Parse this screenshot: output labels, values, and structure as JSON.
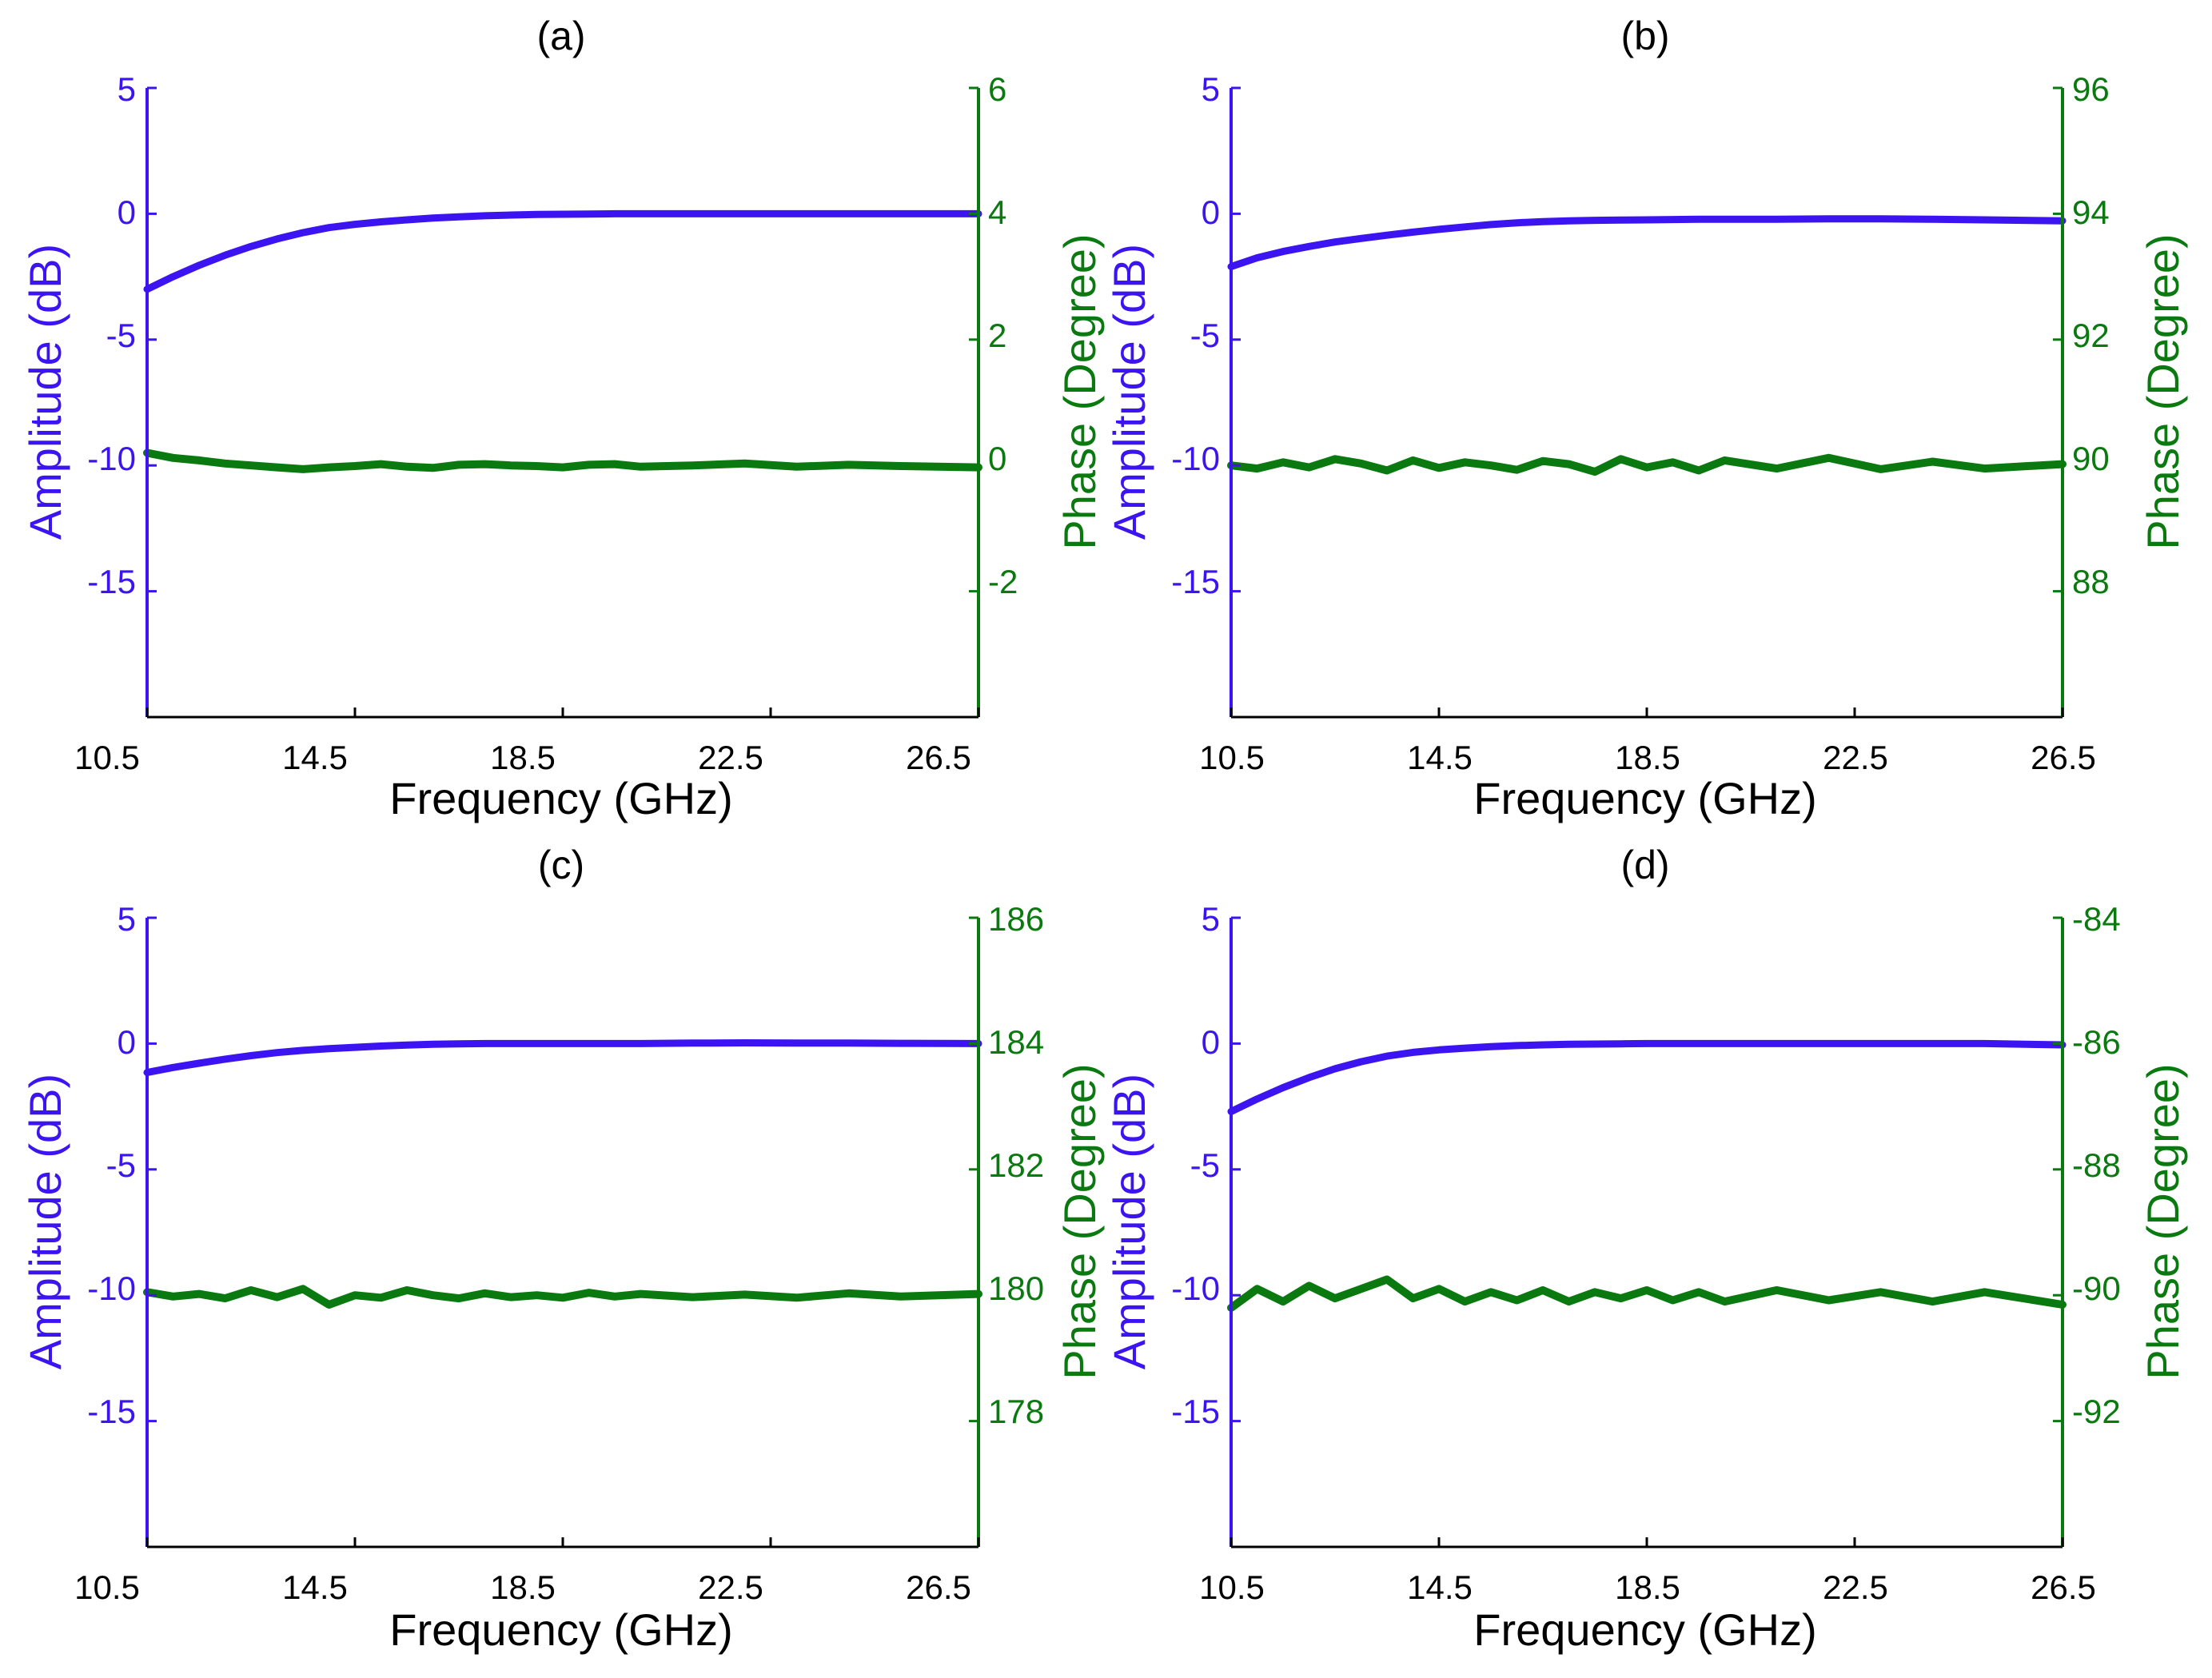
{
  "colors": {
    "amplitude": "#3c14f2",
    "phase": "#0a7a10",
    "axis": "#000000",
    "background": "#ffffff"
  },
  "chart_data": [
    {
      "type": "line",
      "title": "(a)",
      "xlabel": "Frequency (GHz)",
      "ylabel": "Amplitude (dB)",
      "y2label": "Phase (Degree)",
      "xlim": [
        10.5,
        26.5
      ],
      "ylim": [
        -20,
        5
      ],
      "y2lim": [
        -4,
        6
      ],
      "xticks": [
        "10.5",
        "14.5",
        "18.5",
        "22.5",
        "26.5"
      ],
      "yticks": [
        "5",
        "0",
        "-5",
        "-10",
        "-15"
      ],
      "y2ticks": [
        "6",
        "4",
        "2",
        "0",
        "-2"
      ],
      "x": [
        10.5,
        11.0,
        11.5,
        12.0,
        12.5,
        13.0,
        13.5,
        14.0,
        14.5,
        15.0,
        15.5,
        16.0,
        16.5,
        17.0,
        17.5,
        18.0,
        18.5,
        19.0,
        19.5,
        20.0,
        21.0,
        22.0,
        23.0,
        24.0,
        25.0,
        26.5
      ],
      "series": [
        {
          "name": "Amplitude",
          "axis": "left",
          "values": [
            -3.0,
            -2.5,
            -2.05,
            -1.65,
            -1.3,
            -1.0,
            -0.75,
            -0.55,
            -0.42,
            -0.32,
            -0.24,
            -0.17,
            -0.12,
            -0.08,
            -0.05,
            -0.03,
            -0.02,
            -0.01,
            0.0,
            0.0,
            0.0,
            0.0,
            0.0,
            0.0,
            0.0,
            0.0
          ]
        },
        {
          "name": "Phase",
          "axis": "right",
          "values": [
            0.2,
            0.12,
            0.08,
            0.03,
            0.0,
            -0.03,
            -0.06,
            -0.03,
            -0.01,
            0.02,
            -0.02,
            -0.04,
            0.01,
            0.02,
            0.0,
            -0.01,
            -0.03,
            0.01,
            0.02,
            -0.02,
            0.0,
            0.03,
            -0.02,
            0.01,
            -0.01,
            -0.03
          ]
        }
      ]
    },
    {
      "type": "line",
      "title": "(b)",
      "xlabel": "Frequency (GHz)",
      "ylabel": "Amplitude (dB)",
      "y2label": "Phase (Degree)",
      "xlim": [
        10.5,
        26.5
      ],
      "ylim": [
        -20,
        5
      ],
      "y2lim": [
        86,
        96
      ],
      "xticks": [
        "10.5",
        "14.5",
        "18.5",
        "22.5",
        "26.5"
      ],
      "yticks": [
        "5",
        "0",
        "-5",
        "-10",
        "-15"
      ],
      "y2ticks": [
        "96",
        "94",
        "92",
        "90",
        "88"
      ],
      "x": [
        10.5,
        11.0,
        11.5,
        12.0,
        12.5,
        13.0,
        13.5,
        14.0,
        14.5,
        15.0,
        15.5,
        16.0,
        16.5,
        17.0,
        17.5,
        18.0,
        18.5,
        19.0,
        19.5,
        20.0,
        21.0,
        22.0,
        23.0,
        24.0,
        25.0,
        26.5
      ],
      "series": [
        {
          "name": "Amplitude",
          "axis": "left",
          "values": [
            -2.1,
            -1.75,
            -1.5,
            -1.3,
            -1.12,
            -0.98,
            -0.85,
            -0.73,
            -0.62,
            -0.52,
            -0.43,
            -0.36,
            -0.31,
            -0.28,
            -0.26,
            -0.25,
            -0.24,
            -0.23,
            -0.22,
            -0.22,
            -0.22,
            -0.2,
            -0.2,
            -0.22,
            -0.24,
            -0.28
          ]
        },
        {
          "name": "Phase",
          "axis": "right",
          "values": [
            90.0,
            89.95,
            90.05,
            89.97,
            90.1,
            90.03,
            89.92,
            90.08,
            89.96,
            90.05,
            90.0,
            89.93,
            90.07,
            90.02,
            89.9,
            90.1,
            89.97,
            90.05,
            89.92,
            90.08,
            89.95,
            90.12,
            89.94,
            90.06,
            89.95,
            90.02
          ]
        }
      ]
    },
    {
      "type": "line",
      "title": "(c)",
      "xlabel": "Frequency (GHz)",
      "ylabel": "Amplitude (dB)",
      "y2label": "Phase (Degree)",
      "xlim": [
        10.5,
        26.5
      ],
      "ylim": [
        -20,
        5
      ],
      "y2lim": [
        176,
        186
      ],
      "xticks": [
        "10.5",
        "14.5",
        "18.5",
        "22.5",
        "26.5"
      ],
      "yticks": [
        "5",
        "0",
        "-5",
        "-10",
        "-15"
      ],
      "y2ticks": [
        "186",
        "184",
        "182",
        "180",
        "178"
      ],
      "x": [
        10.5,
        11.0,
        11.5,
        12.0,
        12.5,
        13.0,
        13.5,
        14.0,
        14.5,
        15.0,
        15.5,
        16.0,
        16.5,
        17.0,
        17.5,
        18.0,
        18.5,
        19.0,
        19.5,
        20.0,
        21.0,
        22.0,
        23.0,
        24.0,
        25.0,
        26.5
      ],
      "series": [
        {
          "name": "Amplitude",
          "axis": "left",
          "values": [
            -1.15,
            -0.95,
            -0.78,
            -0.62,
            -0.48,
            -0.36,
            -0.27,
            -0.2,
            -0.15,
            -0.1,
            -0.06,
            -0.03,
            -0.01,
            0.0,
            0.0,
            0.0,
            0.0,
            0.0,
            0.0,
            0.0,
            0.02,
            0.03,
            0.02,
            0.02,
            0.01,
            0.0
          ]
        },
        {
          "name": "Phase",
          "axis": "right",
          "values": [
            180.05,
            179.98,
            180.02,
            179.95,
            180.08,
            179.97,
            180.1,
            179.85,
            180.0,
            179.96,
            180.08,
            180.0,
            179.95,
            180.03,
            179.97,
            180.0,
            179.96,
            180.04,
            179.98,
            180.02,
            179.97,
            180.01,
            179.96,
            180.03,
            179.98,
            180.02
          ]
        }
      ]
    },
    {
      "type": "line",
      "title": "(d)",
      "xlabel": "Frequency (GHz)",
      "ylabel": "Amplitude (dB)",
      "y2label": "Phase (Degree)",
      "xlim": [
        10.5,
        26.5
      ],
      "ylim": [
        -20,
        5
      ],
      "y2lim": [
        -94,
        -84
      ],
      "xticks": [
        "10.5",
        "14.5",
        "18.5",
        "22.5",
        "26.5"
      ],
      "yticks": [
        "5",
        "0",
        "-5",
        "-10",
        "-15"
      ],
      "y2ticks": [
        "-84",
        "-86",
        "-88",
        "-90",
        "-92"
      ],
      "x": [
        10.5,
        11.0,
        11.5,
        12.0,
        12.5,
        13.0,
        13.5,
        14.0,
        14.5,
        15.0,
        15.5,
        16.0,
        16.5,
        17.0,
        17.5,
        18.0,
        18.5,
        19.0,
        19.5,
        20.0,
        21.0,
        22.0,
        23.0,
        24.0,
        25.0,
        26.5
      ],
      "series": [
        {
          "name": "Amplitude",
          "axis": "left",
          "values": [
            -2.7,
            -2.2,
            -1.75,
            -1.35,
            -1.0,
            -0.72,
            -0.5,
            -0.35,
            -0.25,
            -0.18,
            -0.12,
            -0.08,
            -0.05,
            -0.03,
            -0.02,
            -0.01,
            0.0,
            0.0,
            0.0,
            0.0,
            0.0,
            0.0,
            0.0,
            0.0,
            0.0,
            -0.05
          ]
        },
        {
          "name": "Phase",
          "axis": "right",
          "values": [
            -90.2,
            -89.9,
            -90.1,
            -89.85,
            -90.05,
            -89.9,
            -89.75,
            -90.05,
            -89.9,
            -90.1,
            -89.95,
            -90.08,
            -89.92,
            -90.1,
            -89.95,
            -90.05,
            -89.92,
            -90.08,
            -89.95,
            -90.1,
            -89.92,
            -90.08,
            -89.95,
            -90.1,
            -89.95,
            -90.15
          ]
        }
      ]
    }
  ]
}
